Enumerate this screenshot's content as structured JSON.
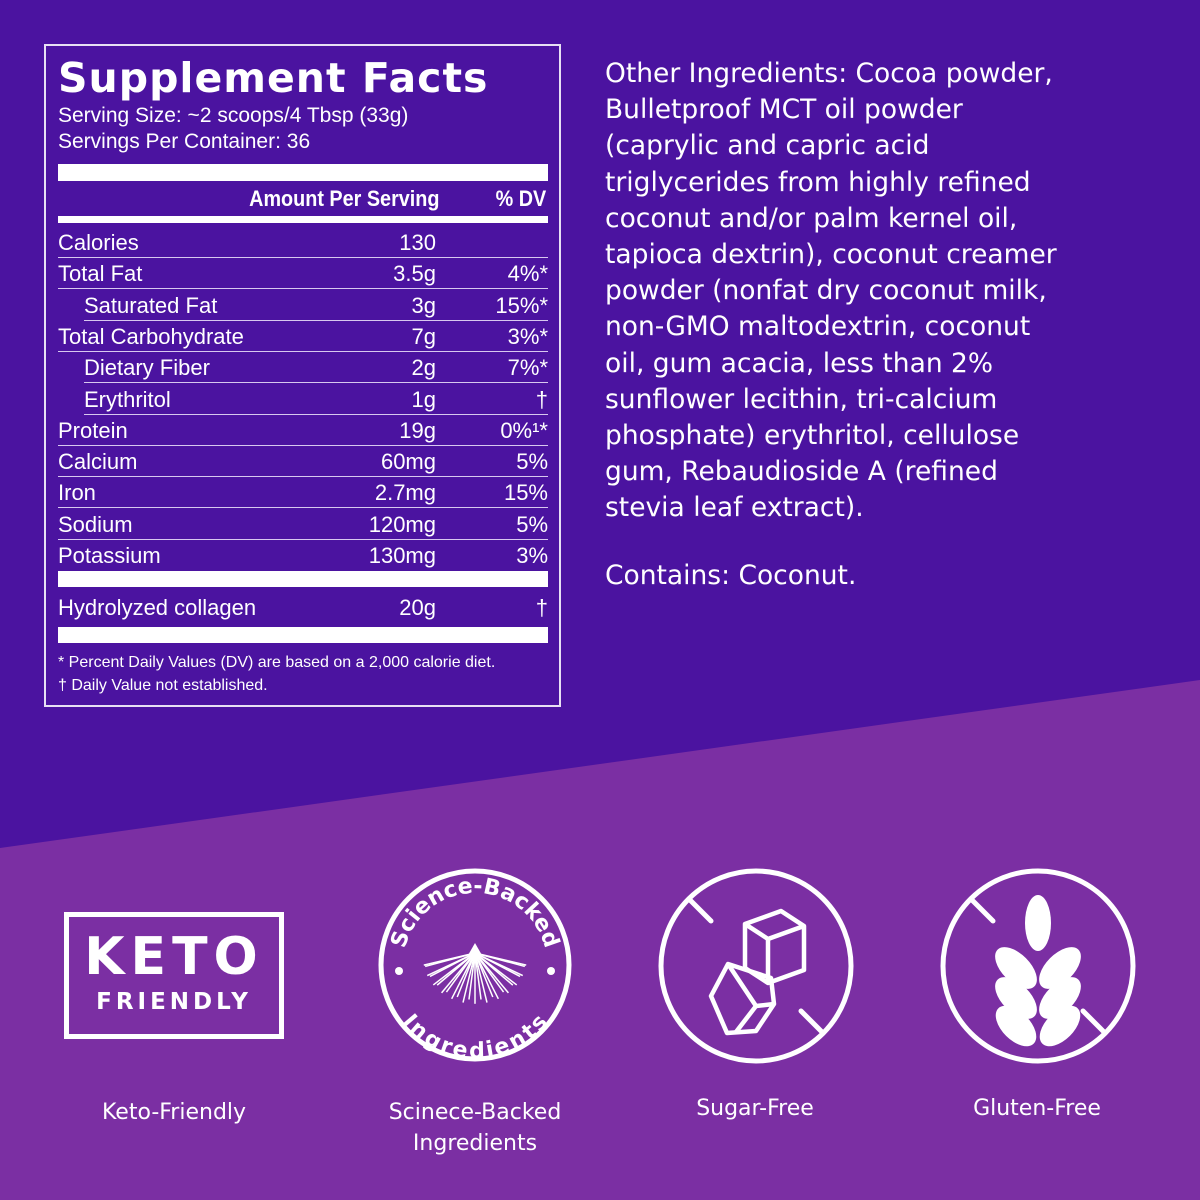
{
  "colors": {
    "top_bg": "#4b13a0",
    "bottom_bg": "#7b2fa3",
    "text": "#ffffff"
  },
  "facts": {
    "title": "Supplement Facts",
    "serving_size": "Serving Size: ~2 scoops/4 Tbsp (33g)",
    "servings_per_container": "Servings Per Container: 36",
    "header_amount": "Amount Per Serving",
    "header_dv": "% DV",
    "rows": [
      {
        "name": "Calories",
        "amount": "130",
        "dv": ""
      },
      {
        "name": "Total Fat",
        "amount": "3.5g",
        "dv": "4%*"
      },
      {
        "name": "Saturated Fat",
        "amount": "3g",
        "dv": "15%*"
      },
      {
        "name": "Total Carbohydrate",
        "amount": "7g",
        "dv": "3%*"
      },
      {
        "name": "Dietary Fiber",
        "amount": "2g",
        "dv": "7%*"
      },
      {
        "name": "Erythritol",
        "amount": "1g",
        "dv": "†"
      },
      {
        "name": "Protein",
        "amount": "19g",
        "dv": "0%¹*"
      },
      {
        "name": "Calcium",
        "amount": "60mg",
        "dv": "5%"
      },
      {
        "name": "Iron",
        "amount": "2.7mg",
        "dv": "15%"
      },
      {
        "name": "Sodium",
        "amount": "120mg",
        "dv": "5%"
      },
      {
        "name": "Potassium",
        "amount": "130mg",
        "dv": "3%"
      }
    ],
    "collagen": {
      "name": "Hydrolyzed collagen",
      "amount": "20g",
      "dv": "†"
    },
    "footnote1": "* Percent Daily Values (DV) are based on a 2,000 calorie diet.",
    "footnote2": "† Daily Value not established."
  },
  "other_ingredients": "Other Ingredients: Cocoa powder,\nBulletproof MCT oil powder\n(caprylic and capric acid\ntriglycerides from highly refined\ncoconut and/or palm kernel oil,\ntapioca dextrin), coconut creamer\npowder (nonfat dry coconut milk,\nnon-GMO maltodextrin, coconut\noil, gum acacia, less than 2%\nsunflower lecithin, tri-calcium\nphosphate) erythritol, cellulose\ngum, Rebaudioside A (refined\nstevia leaf extract).",
  "contains": "Contains: Coconut.",
  "badges": [
    {
      "icon": "keto-badge-icon",
      "badge_text_1": "KETO",
      "badge_text_2": "FRIENDLY",
      "label": "Keto-Friendly"
    },
    {
      "icon": "science-backed-seal-icon",
      "seal_top": "Science-Backed",
      "seal_bottom": "Ingredients",
      "label": "Scinece-Backed\nIngredients"
    },
    {
      "icon": "no-sugar-icon",
      "label": "Sugar-Free"
    },
    {
      "icon": "no-gluten-icon",
      "label": "Gluten-Free"
    }
  ]
}
